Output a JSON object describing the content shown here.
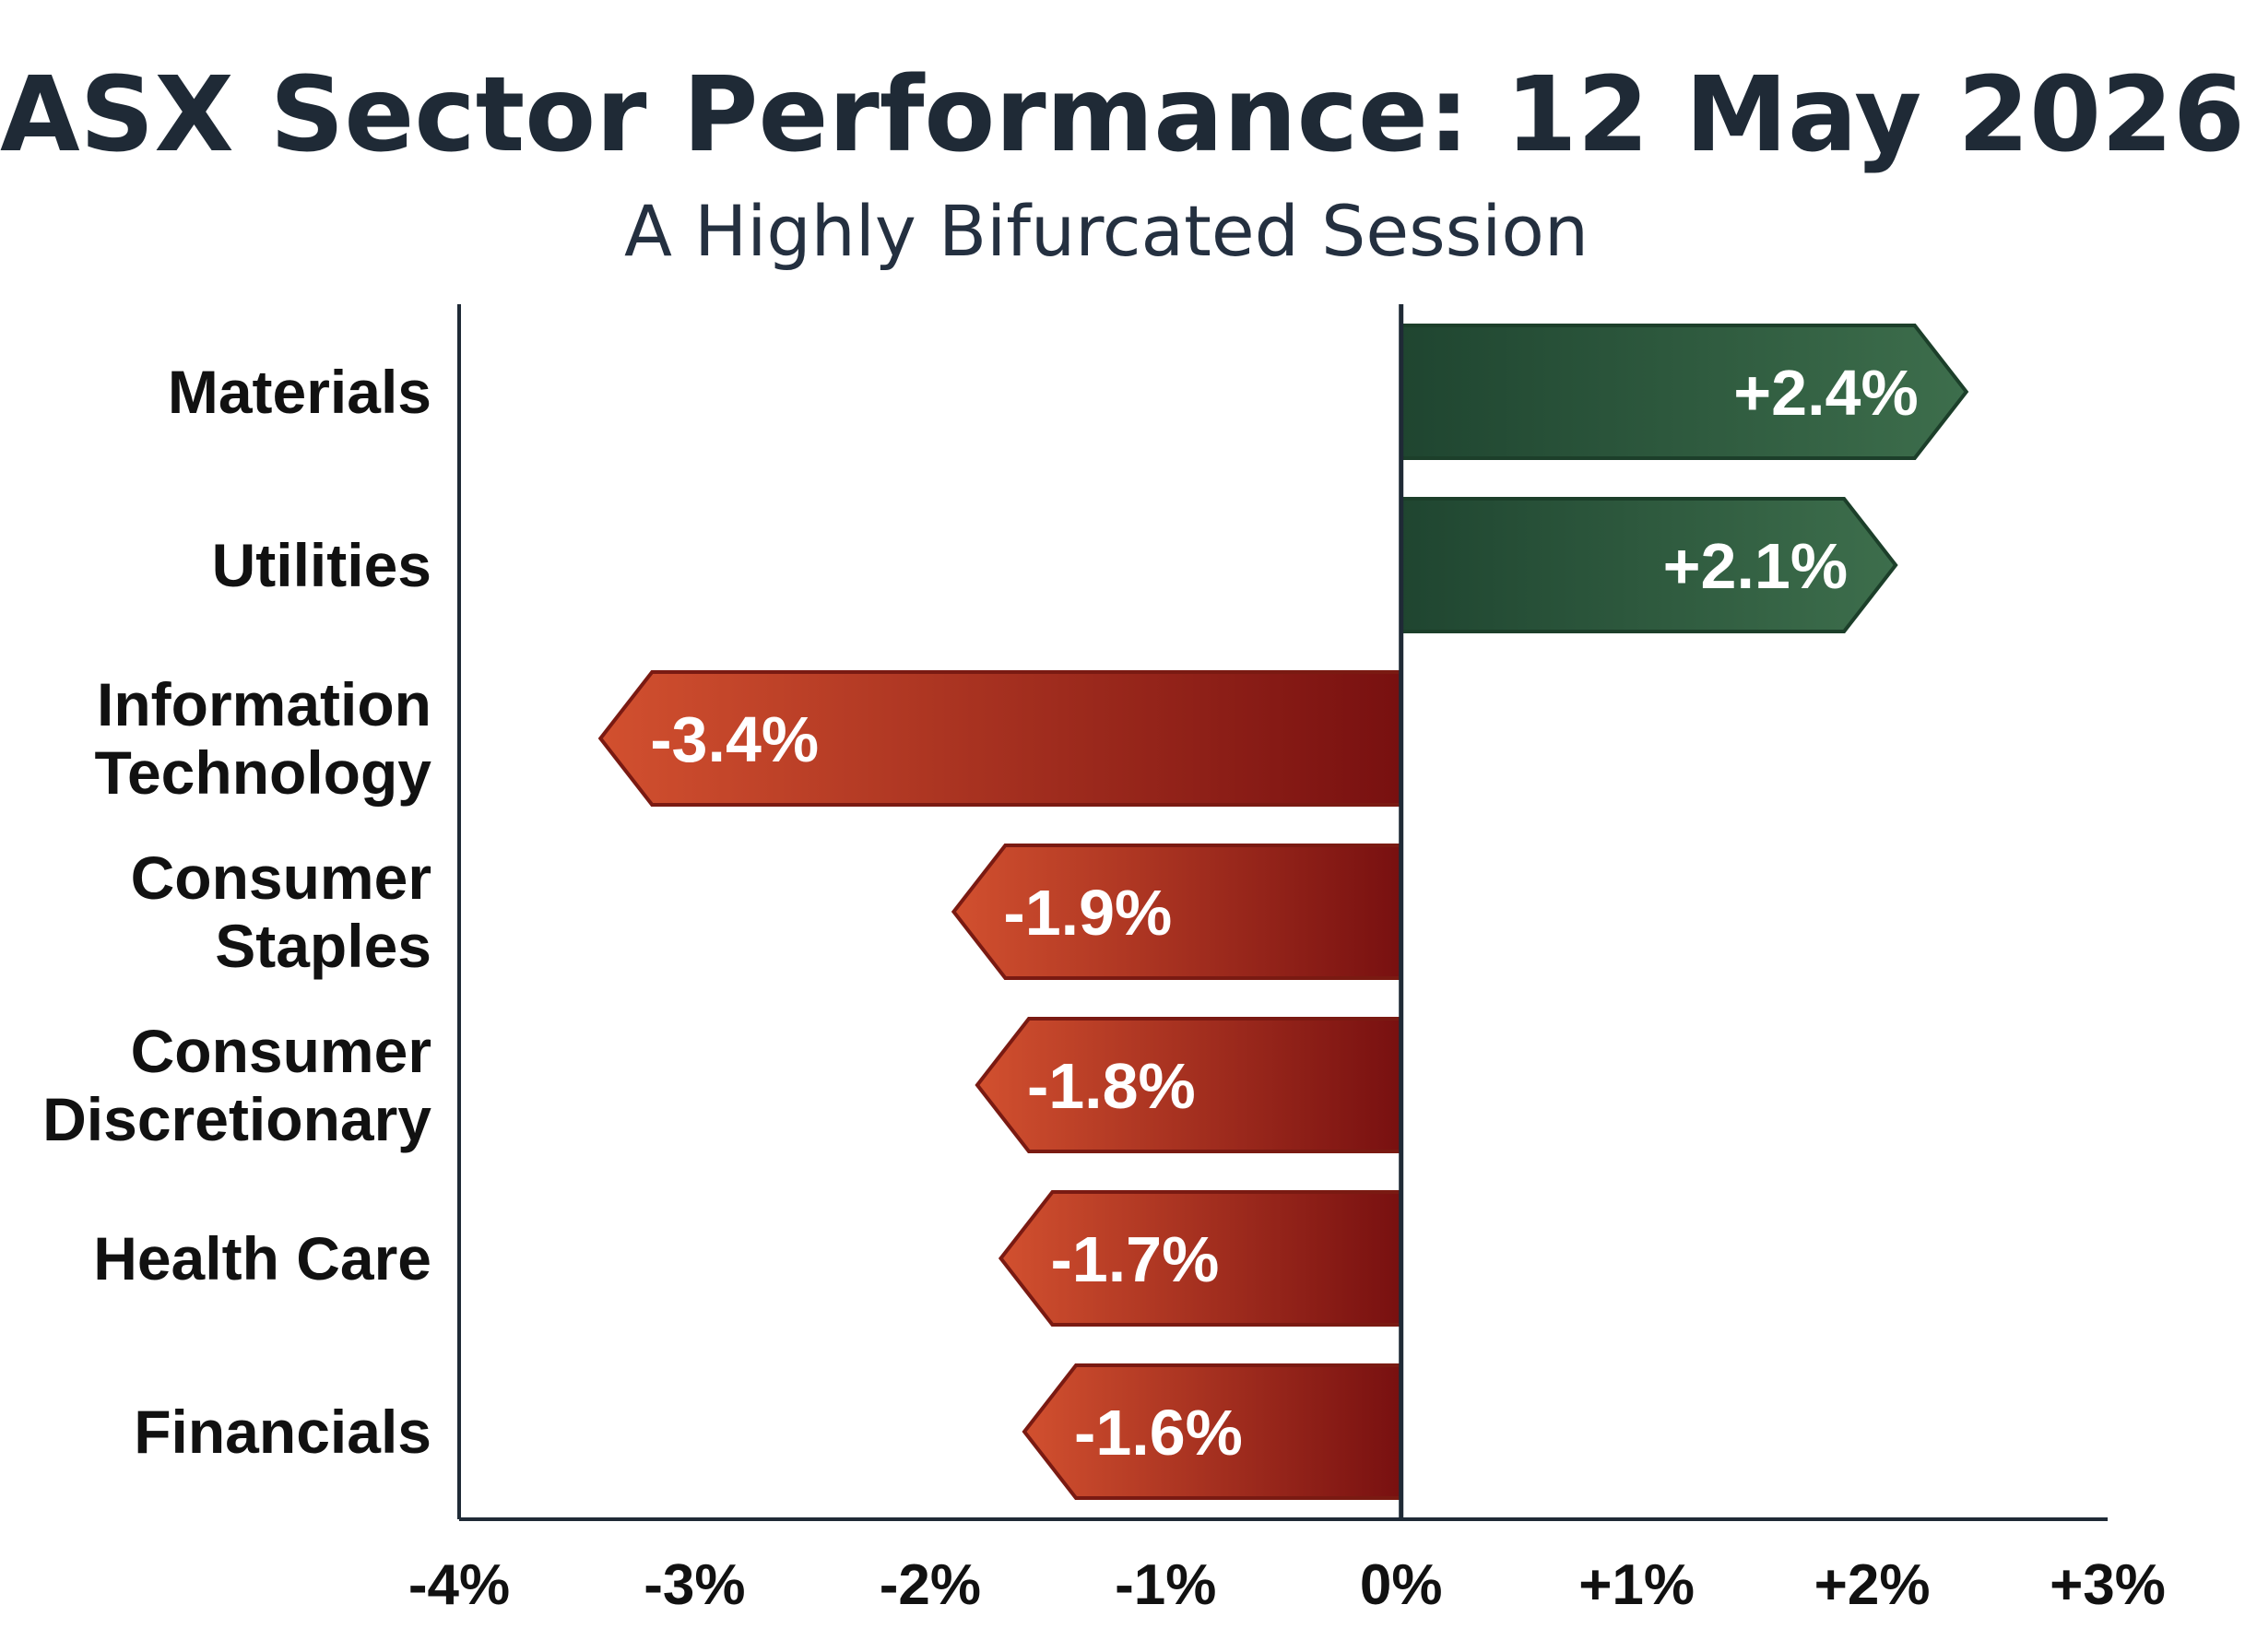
{
  "chart_data": {
    "type": "bar",
    "orientation": "horizontal",
    "title": "ASX Sector Performance: 12 May 2026",
    "subtitle": "A Highly Bifurcated Session",
    "xlabel": "",
    "ylabel": "",
    "categories": [
      "Materials",
      "Utilities",
      "Information Technology",
      "Consumer Staples",
      "Consumer Discretionary",
      "Health Care",
      "Financials"
    ],
    "values": [
      2.4,
      2.1,
      -3.4,
      -1.9,
      -1.8,
      -1.7,
      -1.6
    ],
    "data_labels": [
      "+2.4%",
      "+2.1%",
      "-3.4%",
      "-1.9%",
      "-1.8%",
      "-1.7%",
      "-1.6%"
    ],
    "xlim": [
      -4,
      3
    ],
    "x_ticks": [
      -4,
      -3,
      -2,
      -1,
      0,
      1,
      2,
      3
    ],
    "x_tick_labels": [
      "-4%",
      "-3%",
      "-2%",
      "-1%",
      "0%",
      "+1%",
      "+2%",
      "+3%"
    ],
    "grid": false,
    "colors": {
      "positive": "#2f5e3f",
      "positive_dark": "#1f4530",
      "negative": "#c0432a",
      "negative_dark": "#7a1010",
      "title": "#1f2a36",
      "axis": "#1f2a36"
    }
  }
}
